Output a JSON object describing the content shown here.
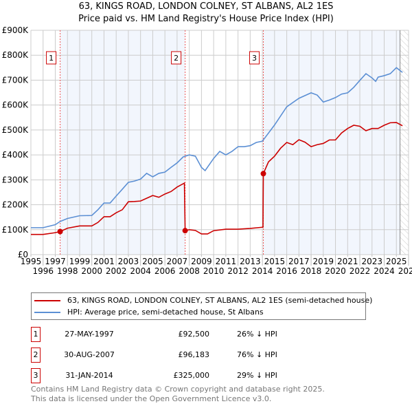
{
  "header": {
    "title": "63, KINGS ROAD, LONDON COLNEY, ST ALBANS, AL2 1ES",
    "subtitle": "Price paid vs. HM Land Registry's House Price Index (HPI)"
  },
  "chart_data": {
    "type": "line",
    "title": "63, KINGS ROAD, LONDON COLNEY, ST ALBANS, AL2 1ES",
    "subtitle": "Price paid vs. HM Land Registry's House Price Index (HPI)",
    "xlim": [
      1995,
      2026
    ],
    "ylim": [
      0,
      900000
    ],
    "x_ticks": [
      "1995",
      "1996",
      "1997",
      "1998",
      "1999",
      "2000",
      "2001",
      "2002",
      "2003",
      "2004",
      "2005",
      "2006",
      "2007",
      "2008",
      "2009",
      "2010",
      "2011",
      "2012",
      "2013",
      "2014",
      "2015",
      "2016",
      "2017",
      "2018",
      "2019",
      "2020",
      "2021",
      "2022",
      "2023",
      "2024",
      "2025",
      "2026"
    ],
    "y_ticks": [
      {
        "v": 0,
        "label": "£0"
      },
      {
        "v": 100000,
        "label": "£100K"
      },
      {
        "v": 200000,
        "label": "£200K"
      },
      {
        "v": 300000,
        "label": "£300K"
      },
      {
        "v": 400000,
        "label": "£400K"
      },
      {
        "v": 500000,
        "label": "£500K"
      },
      {
        "v": 600000,
        "label": "£600K"
      },
      {
        "v": 700000,
        "label": "£700K"
      },
      {
        "v": 800000,
        "label": "£800K"
      },
      {
        "v": 900000,
        "label": "£900K"
      }
    ],
    "grid": true,
    "legend_placement": "below",
    "series": [
      {
        "name": "63, KINGS ROAD, LONDON COLNEY, ST ALBANS, AL2 1ES (semi-detached house)",
        "color": "#cc0000",
        "x": [
          1995,
          1996,
          1997,
          1997.4,
          1998,
          1999,
          2000,
          2000.5,
          2001,
          2001.5,
          2002,
          2002.5,
          2003,
          2003.5,
          2004,
          2004.5,
          2005,
          2005.5,
          2006,
          2006.5,
          2007,
          2007.6,
          2007.66,
          2008,
          2008.5,
          2009,
          2009.5,
          2010,
          2011,
          2012,
          2013,
          2014.05,
          2014.08,
          2014.5,
          2015,
          2015.5,
          2016,
          2016.5,
          2017,
          2017.5,
          2018,
          2018.5,
          2019,
          2019.5,
          2020,
          2020.5,
          2021,
          2021.5,
          2022,
          2022.5,
          2023,
          2023.5,
          2024,
          2024.5,
          2025,
          2025.5
        ],
        "y": [
          81000,
          81000,
          88000,
          92500,
          106000,
          115000,
          115000,
          129000,
          152000,
          152000,
          168000,
          180000,
          212000,
          213000,
          215000,
          226000,
          237000,
          230000,
          243000,
          253000,
          271000,
          287000,
          96183,
          100000,
          97000,
          83000,
          83000,
          96000,
          102000,
          102000,
          105000,
          110000,
          325000,
          372000,
          395000,
          427000,
          450000,
          441000,
          461000,
          451000,
          433000,
          441000,
          446000,
          460000,
          460000,
          488000,
          506000,
          519000,
          515000,
          497000,
          506000,
          506000,
          519000,
          529000,
          530000,
          517000
        ]
      },
      {
        "name": "HPI: Average price, semi-detached house, St Albans",
        "color": "#5b8fd4",
        "x": [
          1995,
          1996,
          1997,
          1997.4,
          1998,
          1999,
          2000,
          2000.5,
          2001,
          2001.5,
          2002,
          2002.5,
          2003,
          2003.5,
          2004,
          2004.5,
          2005,
          2005.5,
          2006,
          2006.5,
          2007,
          2007.5,
          2008,
          2008.5,
          2009,
          2009.3,
          2010,
          2010.5,
          2011,
          2011.5,
          2012,
          2012.5,
          2013,
          2013.5,
          2014,
          2015,
          2016,
          2017,
          2018,
          2018.5,
          2019,
          2019.5,
          2020,
          2020.5,
          2021,
          2021.5,
          2022,
          2022.5,
          2023,
          2023.3,
          2023.5,
          2024,
          2024.5,
          2025,
          2025.5
        ],
        "y": [
          108000,
          108000,
          120000,
          133000,
          145000,
          156000,
          157000,
          180000,
          207000,
          207000,
          235000,
          262000,
          290000,
          295000,
          303000,
          326000,
          312000,
          326000,
          331000,
          350000,
          368000,
          392000,
          400000,
          395000,
          350000,
          337000,
          386000,
          414000,
          400000,
          414000,
          433000,
          433000,
          437000,
          450000,
          455000,
          520000,
          593000,
          627000,
          649000,
          640000,
          612000,
          620000,
          630000,
          644000,
          649000,
          671000,
          699000,
          726000,
          709000,
          695000,
          712000,
          718000,
          726000,
          750000,
          731000
        ]
      }
    ],
    "sales": [
      {
        "num": "1",
        "x": 1997.4,
        "y": 92500
      },
      {
        "num": "2",
        "x": 2007.66,
        "y": 96183
      },
      {
        "num": "3",
        "x": 2014.08,
        "y": 325000
      }
    ],
    "shaded_ranges": [
      [
        1997.4,
        2007.66
      ],
      [
        2014.08,
        2025.3
      ]
    ],
    "forecast_from": 2025.3
  },
  "legend": {
    "property": "63, KINGS ROAD, LONDON COLNEY, ST ALBANS, AL2 1ES (semi-detached house)",
    "hpi": "HPI: Average price, semi-detached house, St Albans"
  },
  "sales_table": [
    {
      "num": "1",
      "date": "27-MAY-1997",
      "price": "£92,500",
      "hpi": "26% ↓ HPI"
    },
    {
      "num": "2",
      "date": "30-AUG-2007",
      "price": "£96,183",
      "hpi": "76% ↓ HPI"
    },
    {
      "num": "3",
      "date": "31-JAN-2014",
      "price": "£325,000",
      "hpi": "29% ↓ HPI"
    }
  ],
  "footer": {
    "line1": "Contains HM Land Registry data © Crown copyright and database right 2025.",
    "line2": "This data is licensed under the Open Government Licence v3.0."
  }
}
